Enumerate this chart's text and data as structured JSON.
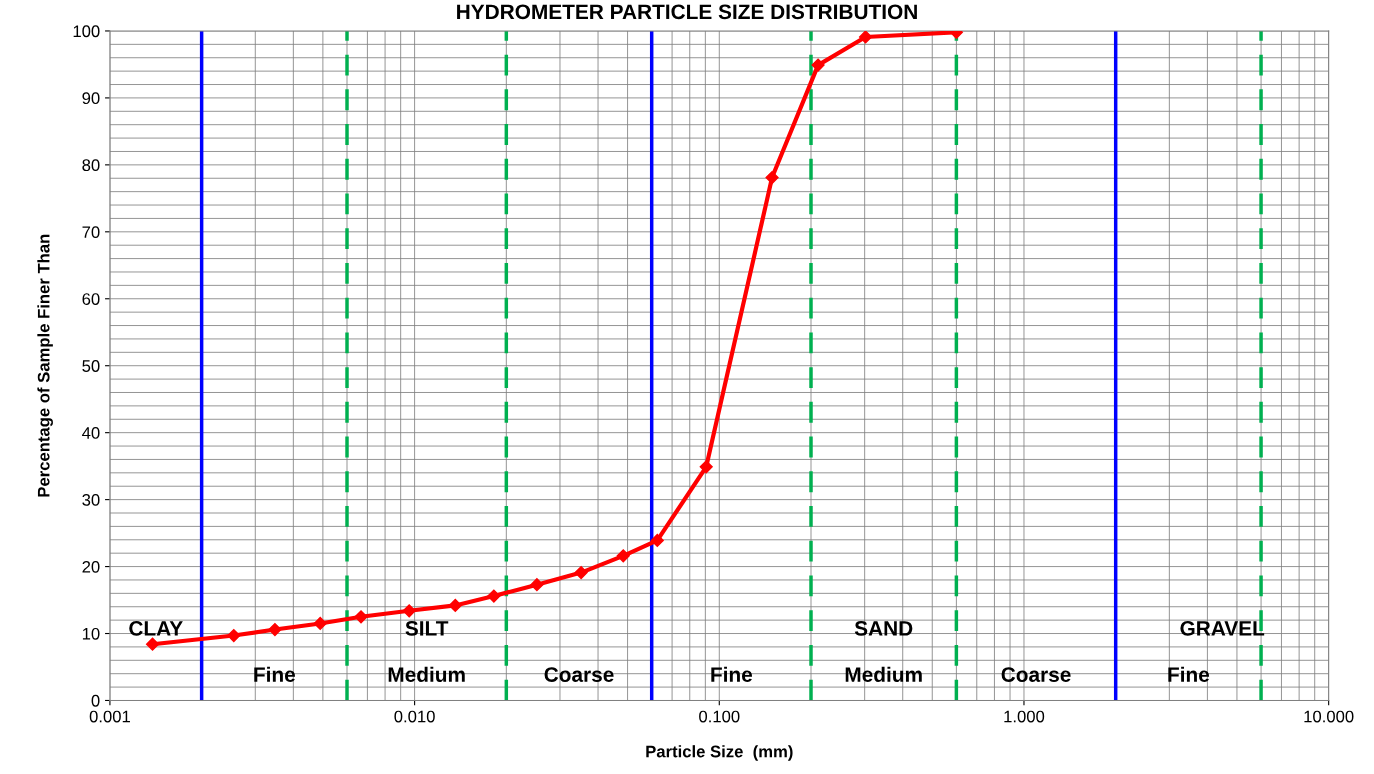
{
  "chart_data": {
    "type": "line",
    "title": "HYDROMETER PARTICLE SIZE DISTRIBUTION",
    "xlabel": "Particle Size  (mm)",
    "ylabel": "Percentage of Sample Finer Than",
    "x": [
      0.00138,
      0.00255,
      0.00348,
      0.0049,
      0.00667,
      0.0096,
      0.0136,
      0.0182,
      0.0252,
      0.0352,
      0.0484,
      0.0626,
      0.0906,
      0.149,
      0.211,
      0.302,
      0.6
    ],
    "series": [
      {
        "color": "#ff0000",
        "values": [
          8.4,
          9.7,
          10.6,
          11.5,
          12.5,
          13.4,
          14.2,
          15.6,
          17.3,
          19.1,
          21.6,
          23.9,
          34.9,
          78.1,
          94.9,
          99.1,
          99.8
        ]
      }
    ],
    "log": "x",
    "marker": "diamond",
    "line_style": "solid",
    "grid": true,
    "legend": false,
    "xlim": [
      0.001,
      10
    ],
    "xticks": [
      {
        "value": 0.001,
        "label": "0.001"
      },
      {
        "value": 0.01,
        "label": "0.010"
      },
      {
        "value": 0.1,
        "label": "0.100"
      },
      {
        "value": 1,
        "label": "1.000"
      },
      {
        "value": 10,
        "label": "10.000"
      }
    ],
    "ylim": [
      0,
      100
    ],
    "yticks": [
      0,
      10,
      20,
      30,
      40,
      50,
      60,
      70,
      80,
      90,
      100
    ],
    "ref_lines": [
      {
        "axis": "x",
        "value": 0.002,
        "color": "#0000ff",
        "line_style": "solid"
      },
      {
        "axis": "x",
        "value": 0.006,
        "color": "#00b050",
        "line_style": "dashed"
      },
      {
        "axis": "x",
        "value": 0.02,
        "color": "#00b050",
        "line_style": "dashed"
      },
      {
        "axis": "x",
        "value": 0.06,
        "color": "#0000ff",
        "line_style": "solid"
      },
      {
        "axis": "x",
        "value": 0.2,
        "color": "#00b050",
        "line_style": "dashed"
      },
      {
        "axis": "x",
        "value": 0.6,
        "color": "#00b050",
        "line_style": "dashed"
      },
      {
        "axis": "x",
        "value": 2,
        "color": "#0000ff",
        "line_style": "solid"
      },
      {
        "axis": "x",
        "value": 6,
        "color": "#00b050",
        "line_style": "dashed"
      }
    ],
    "annotations": [
      "CLAY",
      "SILT",
      "SAND",
      "GRAVEL",
      "Fine",
      "Medium",
      "Coarse",
      "Fine",
      "Medium",
      "Coarse",
      "Fine"
    ]
  }
}
